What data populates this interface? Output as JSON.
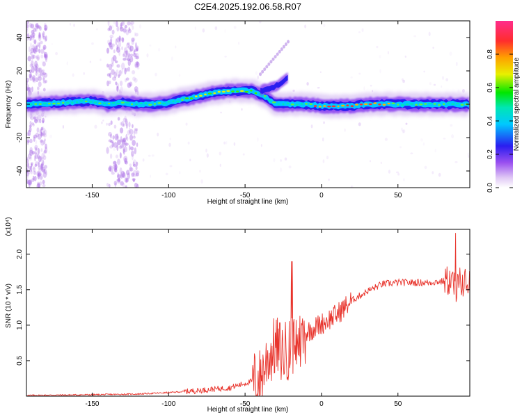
{
  "title": "C2E4.2025.192.06.58.R07",
  "chart_data": [
    {
      "type": "heatmap",
      "xlabel": "Height of straight line (km)",
      "ylabel": "Frequency (Hz)",
      "xlim": [
        -193,
        97
      ],
      "ylim": [
        -50,
        50
      ],
      "xticks": [
        -150,
        -100,
        -50,
        0,
        50
      ],
      "yticks": [
        -40,
        -20,
        0,
        20,
        40
      ],
      "colorbar": {
        "label": "Normalized spectral amplitude",
        "range": [
          0,
          1
        ],
        "ticks": [
          "0.0",
          "0.2",
          "0.4",
          "0.6",
          "0.8"
        ]
      },
      "main_ridge": {
        "x": [
          -190,
          -170,
          -150,
          -140,
          -130,
          -120,
          -110,
          -100,
          -90,
          -80,
          -70,
          -60,
          -50,
          -45,
          -40,
          -36,
          -30,
          -20,
          -10,
          0,
          10,
          20,
          30,
          40,
          50,
          60,
          70,
          80,
          90,
          95
        ],
        "freq": [
          0,
          1,
          2,
          0,
          1,
          0,
          0,
          1,
          3,
          5,
          7,
          8,
          8,
          8,
          6,
          4,
          0,
          0,
          0,
          -1,
          -1,
          -1,
          0,
          0,
          0,
          0,
          0,
          0,
          0,
          0
        ]
      },
      "branch": {
        "x": [
          -40,
          -36,
          -32,
          -28,
          -24,
          -22
        ],
        "freq": [
          8,
          9,
          10,
          12,
          14,
          16
        ]
      },
      "noise_bands_x": [
        [
          -193,
          -180
        ],
        [
          -140,
          -120
        ]
      ]
    },
    {
      "type": "line",
      "xlabel": "Height of straight line (km)",
      "ylabel": "SNR (10 * v/v)",
      "y_scale_label": "(x10⁴)",
      "xlim": [
        -193,
        97
      ],
      "ylim": [
        0,
        2.35
      ],
      "xticks": [
        -150,
        -100,
        -50,
        0,
        50
      ],
      "yticks": [
        0.5,
        1.0,
        1.5,
        2.0
      ],
      "ytick_labels": [
        "0.5",
        "1.0",
        "1.5",
        "2.0"
      ],
      "color": "#e8332b",
      "envelope": {
        "x": [
          -193,
          -150,
          -120,
          -100,
          -80,
          -60,
          -50,
          -40,
          -35,
          -30,
          -25,
          -20,
          -15,
          -10,
          0,
          10,
          20,
          30,
          40,
          50,
          60,
          70,
          80,
          85,
          88,
          90,
          92,
          97
        ],
        "y": [
          0.01,
          0.02,
          0.03,
          0.05,
          0.08,
          0.12,
          0.18,
          0.25,
          0.55,
          0.7,
          0.6,
          0.7,
          0.75,
          0.9,
          1.02,
          1.15,
          1.35,
          1.48,
          1.58,
          1.6,
          1.6,
          1.6,
          1.62,
          1.63,
          1.5,
          1.62,
          1.6,
          1.6
        ]
      }
    }
  ]
}
